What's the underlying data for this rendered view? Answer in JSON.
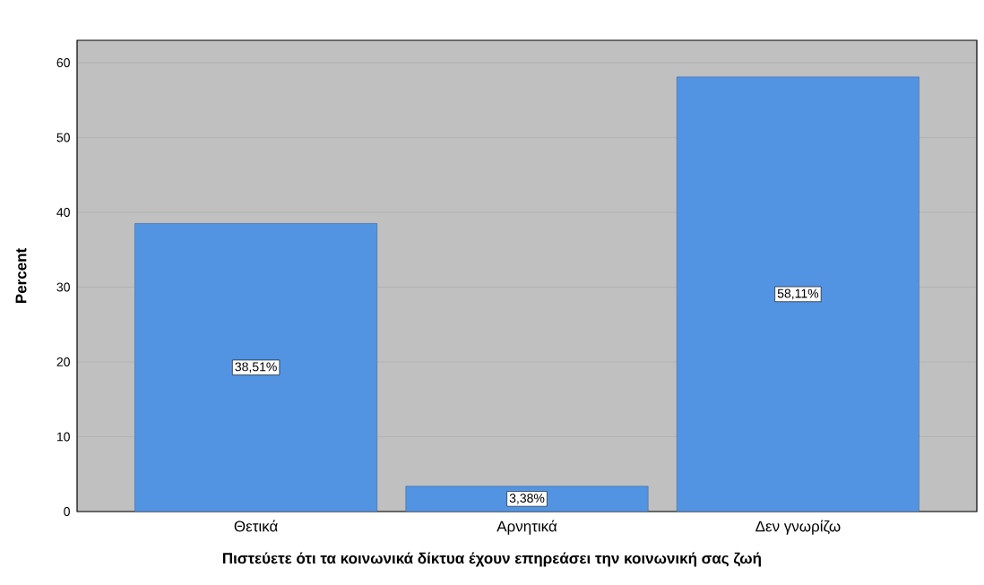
{
  "chart_data": {
    "type": "bar",
    "xlabel": "Πιστεύετε ότι τα κοινωνικά δίκτυα έχουν επηρεάσει την κοινωνική σας ζωή",
    "ylabel": "Percent",
    "categories": [
      "Θετικά",
      "Αρνητικά",
      "Δεν γνωρίζω"
    ],
    "values": [
      38.51,
      3.38,
      58.11
    ],
    "value_labels": [
      "38,51%",
      "3,38%",
      "58,11%"
    ],
    "color": "#5294e2",
    "ylim": [
      0,
      63
    ],
    "yticks": [
      0,
      10,
      20,
      30,
      40,
      50,
      60
    ],
    "grid": "y"
  }
}
